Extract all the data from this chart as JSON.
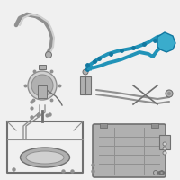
{
  "background_color": "#f0f0f0",
  "fig_size": [
    2.0,
    2.0
  ],
  "dpi": 100,
  "blue": "#2193b8",
  "blue_dark": "#1278a0",
  "blue_fill": "#3aaccc",
  "gray1": "#707070",
  "gray2": "#909090",
  "gray3": "#b0b0b0",
  "gray4": "#d0d0d0",
  "white": "#ffffff",
  "xlim": [
    0,
    200
  ],
  "ylim": [
    0,
    200
  ]
}
